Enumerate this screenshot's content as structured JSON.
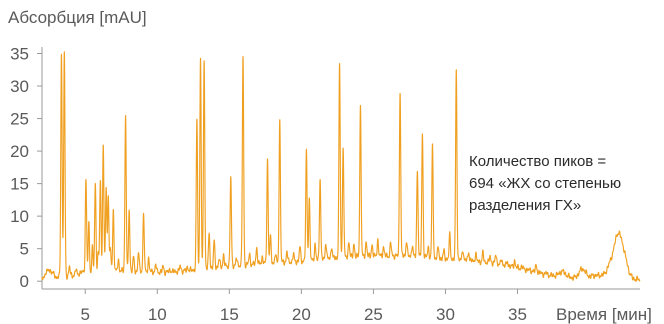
{
  "chart_data": {
    "type": "line",
    "ylabel": "Абсорбция [mAU]",
    "xlabel": "Время [мин]",
    "annotation": [
      "Количество пиков =",
      "694 «ЖХ со степенью",
      "разделения ГХ»"
    ],
    "xlim": [
      2,
      43.5
    ],
    "ylim": [
      -1.2,
      36
    ],
    "x_ticks": [
      5,
      10,
      15,
      20,
      25,
      30,
      35
    ],
    "y_ticks": [
      0,
      5,
      10,
      15,
      20,
      25,
      30,
      35
    ],
    "grid": false,
    "line_color": "#f0a020",
    "baseline_points": [
      [
        2.0,
        0.3
      ],
      [
        2.5,
        1.8
      ],
      [
        3.0,
        0.6
      ],
      [
        4.2,
        0.9
      ],
      [
        4.8,
        1.4
      ],
      [
        5.5,
        1.2
      ],
      [
        6.5,
        1.5
      ],
      [
        7.5,
        1.6
      ],
      [
        9.0,
        1.5
      ],
      [
        10.5,
        1.4
      ],
      [
        12.0,
        1.6
      ],
      [
        13.5,
        2.0
      ],
      [
        15.0,
        2.4
      ],
      [
        16.5,
        2.6
      ],
      [
        18.0,
        2.8
      ],
      [
        19.5,
        3.0
      ],
      [
        21.0,
        3.3
      ],
      [
        22.5,
        3.6
      ],
      [
        24.0,
        3.8
      ],
      [
        25.5,
        3.9
      ],
      [
        27.0,
        3.9
      ],
      [
        28.5,
        3.7
      ],
      [
        30.0,
        3.4
      ],
      [
        31.5,
        3.2
      ],
      [
        33.0,
        2.9
      ],
      [
        34.5,
        2.3
      ],
      [
        36.0,
        1.6
      ],
      [
        37.0,
        1.0
      ],
      [
        38.0,
        0.7
      ],
      [
        39.0,
        0.5
      ],
      [
        40.0,
        0.6
      ],
      [
        41.0,
        1.0
      ],
      [
        41.8,
        2.2
      ],
      [
        42.3,
        2.4
      ],
      [
        43.0,
        0.4
      ],
      [
        43.5,
        0.2
      ]
    ],
    "peaks": [
      [
        2.3,
        1.5
      ],
      [
        3.35,
        35.2
      ],
      [
        3.55,
        35.0
      ],
      [
        3.9,
        2.3
      ],
      [
        4.35,
        1.8
      ],
      [
        5.05,
        15.6
      ],
      [
        5.25,
        8.8
      ],
      [
        5.5,
        5.2
      ],
      [
        5.7,
        15.1
      ],
      [
        5.9,
        4.3
      ],
      [
        6.05,
        15.6
      ],
      [
        6.25,
        20.9
      ],
      [
        6.45,
        14.3
      ],
      [
        6.6,
        13.2
      ],
      [
        6.75,
        4.8
      ],
      [
        6.95,
        10.9
      ],
      [
        7.3,
        3.3
      ],
      [
        7.8,
        25.4
      ],
      [
        8.05,
        10.9
      ],
      [
        8.35,
        3.7
      ],
      [
        8.7,
        4.5
      ],
      [
        9.05,
        10.4
      ],
      [
        9.4,
        3.5
      ],
      [
        9.9,
        2.5
      ],
      [
        10.4,
        2.3
      ],
      [
        10.9,
        1.8
      ],
      [
        11.6,
        2.4
      ],
      [
        12.1,
        2.2
      ],
      [
        12.75,
        24.8
      ],
      [
        13.0,
        34.5
      ],
      [
        13.25,
        34.1
      ],
      [
        13.6,
        7.5
      ],
      [
        13.95,
        6.2
      ],
      [
        14.3,
        3.4
      ],
      [
        14.6,
        4.0
      ],
      [
        15.1,
        15.9
      ],
      [
        15.5,
        3.5
      ],
      [
        15.95,
        34.3
      ],
      [
        16.4,
        4.2
      ],
      [
        16.9,
        5.3
      ],
      [
        17.3,
        3.8
      ],
      [
        17.65,
        18.6
      ],
      [
        17.85,
        7.0
      ],
      [
        18.2,
        4.3
      ],
      [
        18.5,
        24.7
      ],
      [
        19.0,
        4.6
      ],
      [
        19.45,
        4.2
      ],
      [
        19.9,
        5.3
      ],
      [
        20.35,
        20.0
      ],
      [
        20.55,
        12.6
      ],
      [
        20.95,
        5.7
      ],
      [
        21.3,
        15.8
      ],
      [
        21.7,
        6.0
      ],
      [
        22.1,
        5.4
      ],
      [
        22.65,
        33.0
      ],
      [
        22.9,
        20.6
      ],
      [
        23.3,
        6.2
      ],
      [
        23.65,
        5.8
      ],
      [
        24.1,
        26.9
      ],
      [
        24.5,
        6.1
      ],
      [
        24.9,
        5.6
      ],
      [
        25.3,
        6.3
      ],
      [
        25.7,
        5.3
      ],
      [
        26.2,
        5.9
      ],
      [
        26.85,
        29.3
      ],
      [
        27.3,
        6.3
      ],
      [
        27.7,
        5.6
      ],
      [
        28.05,
        17.2
      ],
      [
        28.4,
        22.8
      ],
      [
        28.8,
        5.4
      ],
      [
        29.1,
        21.0
      ],
      [
        29.5,
        5.3
      ],
      [
        29.9,
        4.8
      ],
      [
        30.3,
        7.2
      ],
      [
        30.75,
        32.6
      ],
      [
        31.2,
        5.0
      ],
      [
        31.6,
        4.6
      ],
      [
        32.1,
        4.2
      ],
      [
        32.6,
        4.4
      ],
      [
        33.1,
        3.9
      ],
      [
        33.5,
        4.2
      ],
      [
        33.9,
        3.4
      ],
      [
        34.3,
        3.0
      ],
      [
        34.8,
        3.2
      ],
      [
        35.3,
        2.3
      ],
      [
        36.3,
        2.5
      ],
      [
        37.0,
        1.3
      ],
      [
        38.1,
        1.5
      ],
      [
        39.5,
        1.9
      ],
      [
        40.4,
        0.9
      ],
      [
        41.55,
        3.0
      ],
      [
        41.95,
        6.6
      ],
      [
        42.3,
        4.5
      ]
    ]
  }
}
